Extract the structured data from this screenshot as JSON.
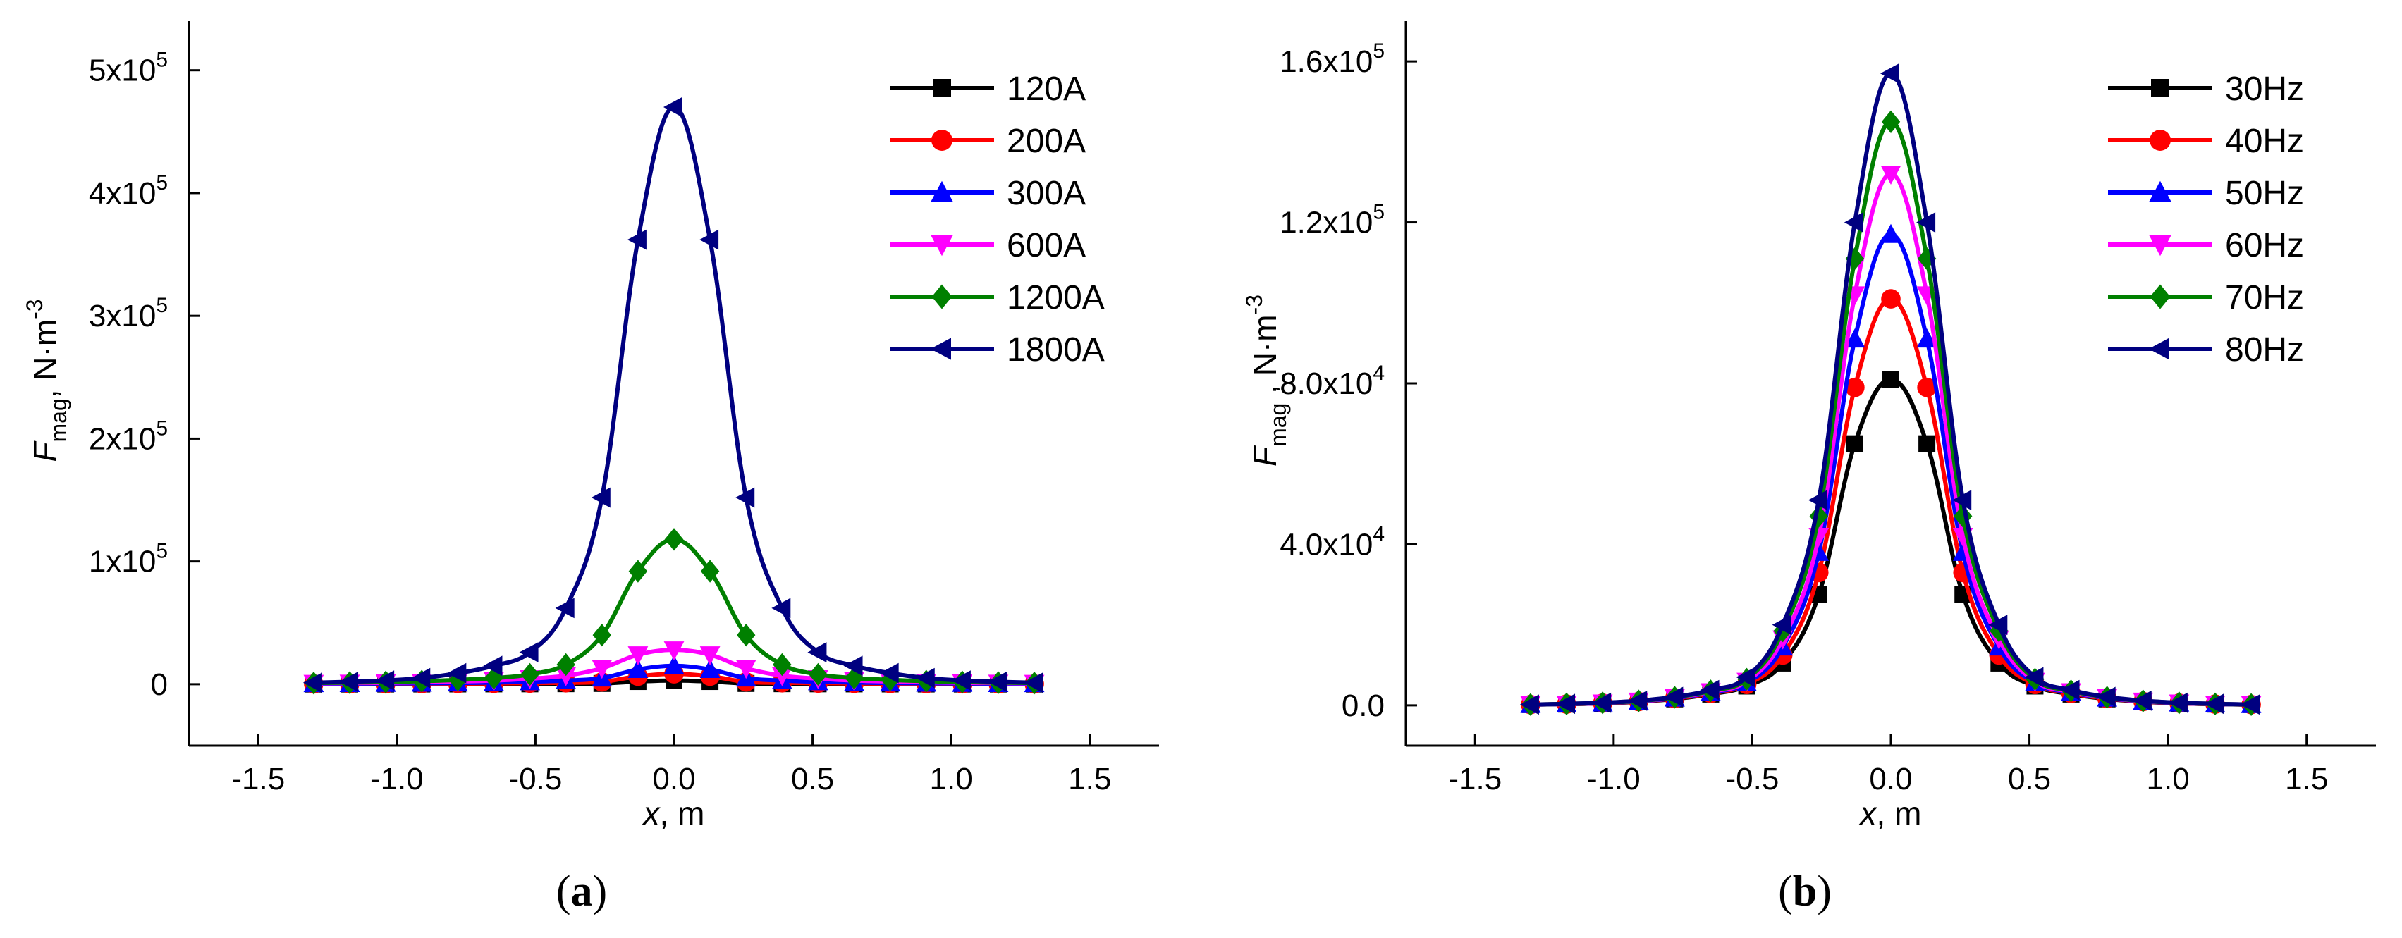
{
  "chart_data": [
    {
      "panel_label": "(a)",
      "panel_letter": "a",
      "type": "line",
      "xlabel": "x, m",
      "xlabel_italic": "x",
      "xlabel_rest": ", m",
      "ylabel": "F_mag, N·m^-3",
      "ylabel_main": "F",
      "ylabel_sub": "mag",
      "ylabel_unit": ", N·m",
      "ylabel_exp": "-3",
      "xlim": [
        -1.75,
        1.75
      ],
      "ylim": [
        -50000,
        540000
      ],
      "xticks": [
        -1.5,
        -1.0,
        -0.5,
        0.0,
        0.5,
        1.0,
        1.5
      ],
      "xtick_labels": [
        "-1.5",
        "-1.0",
        "-0.5",
        "0.0",
        "0.5",
        "1.0",
        "1.5"
      ],
      "yticks": [
        {
          "value": 0,
          "base": "0",
          "exp": ""
        },
        {
          "value": 100000,
          "base": "1x10",
          "exp": "5"
        },
        {
          "value": 200000,
          "base": "2x10",
          "exp": "5"
        },
        {
          "value": 300000,
          "base": "3x10",
          "exp": "5"
        },
        {
          "value": 400000,
          "base": "4x10",
          "exp": "5"
        },
        {
          "value": 500000,
          "base": "5x10",
          "exp": "5"
        }
      ],
      "legend_position": "top-right",
      "x": [
        -1.3,
        -1.17,
        -1.04,
        -0.91,
        -0.78,
        -0.65,
        -0.52,
        -0.39,
        -0.26,
        -0.13,
        0.0,
        0.13,
        0.26,
        0.39,
        0.52,
        0.65,
        0.78,
        0.91,
        1.04,
        1.17,
        1.3
      ],
      "series": [
        {
          "name": "120A",
          "color": "#000000",
          "marker": "square",
          "values": [
            100,
            120,
            140,
            170,
            210,
            260,
            320,
            420,
            620,
            2200,
            3000,
            2200,
            620,
            420,
            320,
            260,
            210,
            170,
            140,
            120,
            100
          ]
        },
        {
          "name": "200A",
          "color": "#ff0000",
          "marker": "circle",
          "values": [
            200,
            260,
            320,
            400,
            520,
            680,
            880,
            1200,
            1900,
            6500,
            8500,
            6500,
            1900,
            1200,
            880,
            680,
            520,
            400,
            320,
            260,
            200
          ]
        },
        {
          "name": "300A",
          "color": "#0000ff",
          "marker": "triangle-up",
          "values": [
            400,
            500,
            620,
            780,
            1000,
            1400,
            2000,
            3000,
            5000,
            12000,
            15000,
            12000,
            5000,
            3000,
            2000,
            1400,
            1000,
            780,
            620,
            500,
            400
          ]
        },
        {
          "name": "600A",
          "color": "#ff00ff",
          "marker": "triangle-down",
          "values": [
            700,
            900,
            1200,
            1600,
            2200,
            3000,
            4500,
            7000,
            13000,
            24000,
            28000,
            24000,
            13000,
            7000,
            4500,
            3000,
            2200,
            1600,
            1200,
            900,
            700
          ]
        },
        {
          "name": "1200A",
          "color": "#008000",
          "marker": "diamond",
          "values": [
            1000,
            1300,
            1800,
            2500,
            3500,
            5000,
            8000,
            16000,
            40000,
            92000,
            118000,
            92000,
            40000,
            16000,
            8000,
            5000,
            3500,
            2500,
            1800,
            1300,
            1000
          ]
        },
        {
          "name": "1800A",
          "color": "#000080",
          "marker": "triangle-left",
          "values": [
            1200,
            2000,
            3000,
            5000,
            9000,
            15000,
            26000,
            62000,
            152000,
            362000,
            470000,
            362000,
            152000,
            62000,
            26000,
            15000,
            9000,
            5000,
            3000,
            2000,
            1200
          ]
        }
      ]
    },
    {
      "panel_label": "(b)",
      "panel_letter": "b",
      "type": "line",
      "xlabel": "x, m",
      "xlabel_italic": "x",
      "xlabel_rest": ", m",
      "ylabel": "F_mag , N·m^-3",
      "ylabel_main": "F",
      "ylabel_sub": "mag",
      "ylabel_unit": " , N·m",
      "ylabel_exp": "-3",
      "xlim": [
        -1.75,
        1.75
      ],
      "ylim": [
        -10000,
        170000
      ],
      "xticks": [
        -1.5,
        -1.0,
        -0.5,
        0.0,
        0.5,
        1.0,
        1.5
      ],
      "xtick_labels": [
        "-1.5",
        "-1.0",
        "-0.5",
        "0.0",
        "0.5",
        "1.0",
        "1.5"
      ],
      "yticks": [
        {
          "value": 0,
          "base": "0.0",
          "exp": ""
        },
        {
          "value": 40000,
          "base": "4.0x10",
          "exp": "4"
        },
        {
          "value": 80000,
          "base": "8.0x10",
          "exp": "4"
        },
        {
          "value": 120000,
          "base": "1.2x10",
          "exp": "5"
        },
        {
          "value": 160000,
          "base": "1.6x10",
          "exp": "5"
        }
      ],
      "legend_position": "top-right",
      "x": [
        -1.3,
        -1.17,
        -1.04,
        -0.91,
        -0.78,
        -0.65,
        -0.52,
        -0.39,
        -0.26,
        -0.13,
        0.0,
        0.13,
        0.26,
        0.39,
        0.52,
        0.65,
        0.78,
        0.91,
        1.04,
        1.17,
        1.3
      ],
      "series": [
        {
          "name": "30Hz",
          "color": "#000000",
          "marker": "square",
          "values": [
            200,
            300,
            500,
            900,
            1600,
            2800,
            4800,
            10500,
            27500,
            65000,
            81000,
            65000,
            27500,
            10500,
            4800,
            2800,
            1600,
            900,
            500,
            300,
            200
          ]
        },
        {
          "name": "40Hz",
          "color": "#ff0000",
          "marker": "circle",
          "values": [
            200,
            300,
            550,
            950,
            1700,
            3000,
            5200,
            12500,
            33000,
            79000,
            101000,
            79000,
            33000,
            12500,
            5200,
            3000,
            1700,
            950,
            550,
            300,
            200
          ]
        },
        {
          "name": "50Hz",
          "color": "#0000ff",
          "marker": "triangle-up",
          "values": [
            200,
            320,
            580,
            1000,
            1800,
            3200,
            5600,
            14500,
            38000,
            91000,
            117000,
            91000,
            38000,
            14500,
            5600,
            3200,
            1800,
            1000,
            580,
            320,
            200
          ]
        },
        {
          "name": "60Hz",
          "color": "#ff00ff",
          "marker": "triangle-down",
          "values": [
            200,
            340,
            600,
            1050,
            1900,
            3400,
            6000,
            16500,
            42000,
            102000,
            132000,
            102000,
            42000,
            16500,
            6000,
            3400,
            1900,
            1050,
            600,
            340,
            200
          ]
        },
        {
          "name": "70Hz",
          "color": "#008000",
          "marker": "diamond",
          "values": [
            200,
            360,
            620,
            1100,
            2000,
            3600,
            6500,
            18500,
            47000,
            111000,
            145000,
            111000,
            47000,
            18500,
            6500,
            3600,
            2000,
            1100,
            620,
            360,
            200
          ]
        },
        {
          "name": "80Hz",
          "color": "#000080",
          "marker": "triangle-left",
          "values": [
            200,
            380,
            650,
            1150,
            2100,
            3800,
            7000,
            20000,
            51000,
            120000,
            157000,
            120000,
            51000,
            20000,
            7000,
            3800,
            2100,
            1150,
            650,
            380,
            200
          ]
        }
      ]
    }
  ]
}
